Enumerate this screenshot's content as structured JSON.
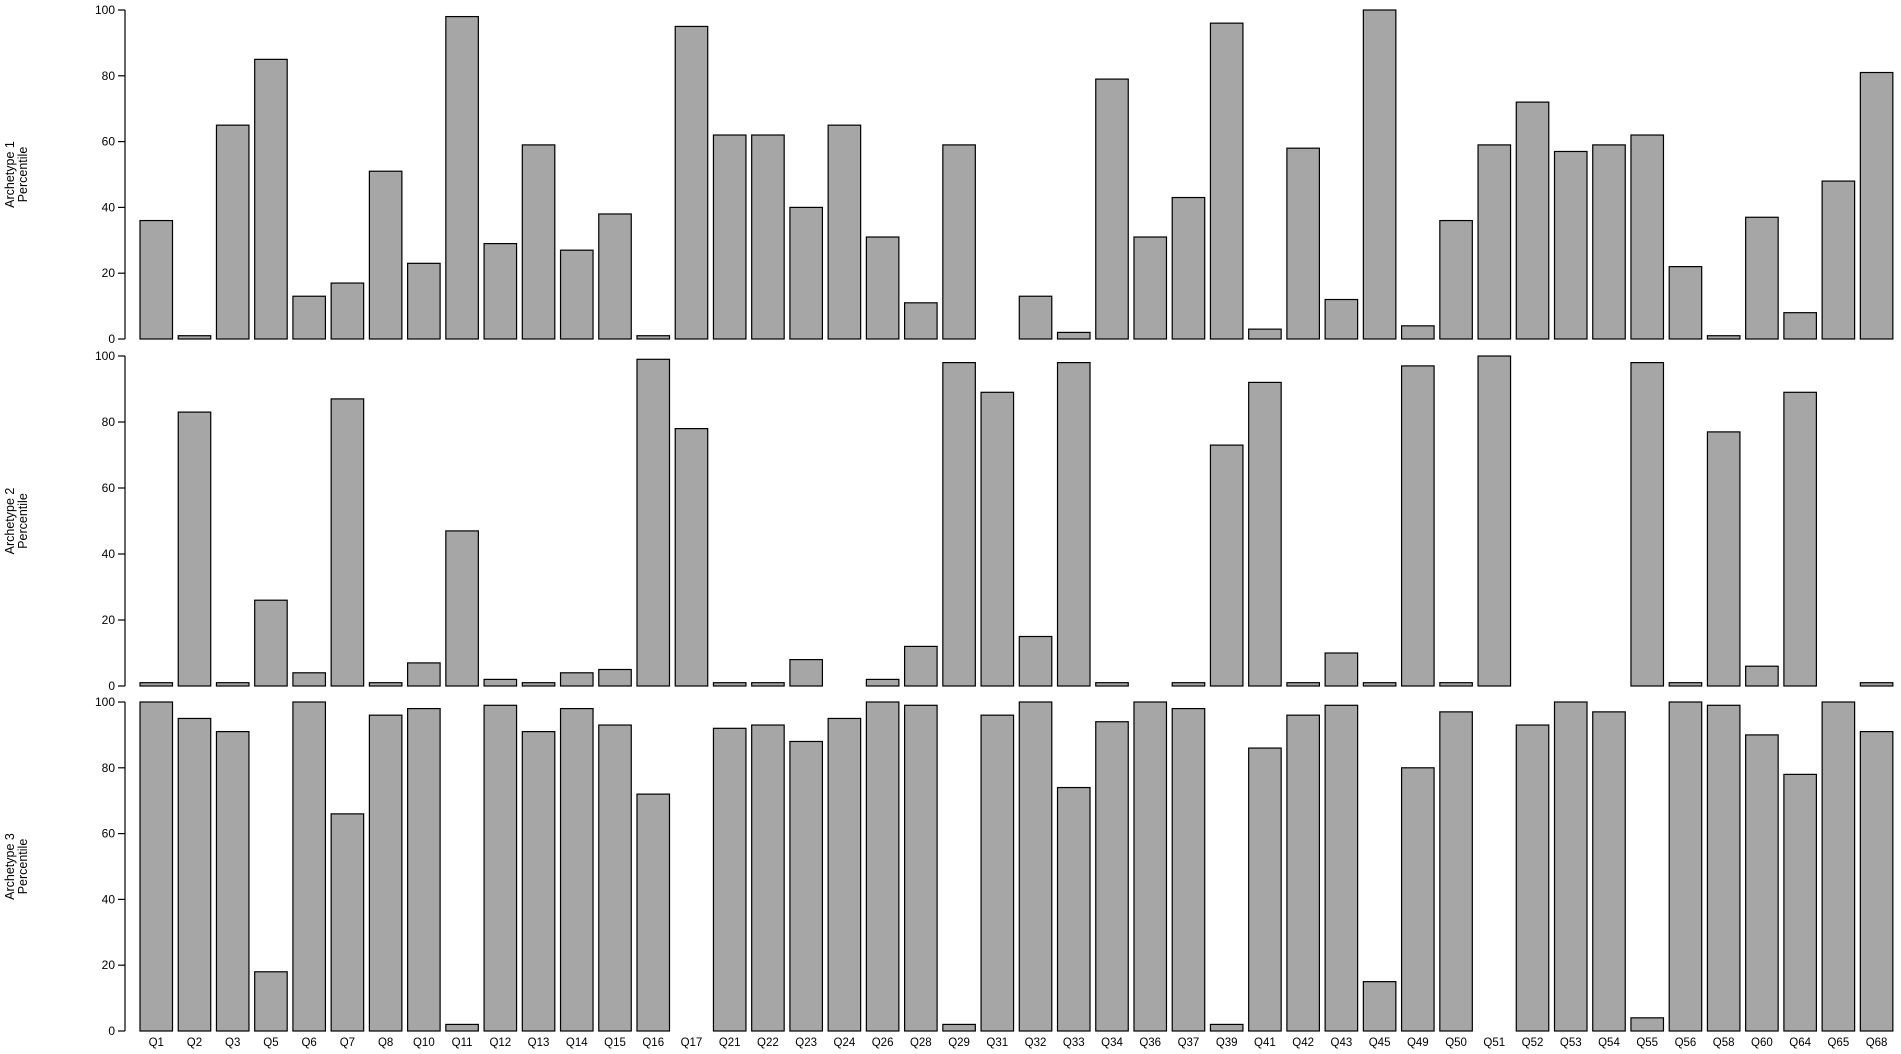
{
  "chart_data": {
    "type": "bar",
    "layout": "stacked-panels",
    "categories": [
      "Q1",
      "Q2",
      "Q3",
      "Q5",
      "Q6",
      "Q7",
      "Q8",
      "Q10",
      "Q11",
      "Q12",
      "Q13",
      "Q14",
      "Q15",
      "Q16",
      "Q17",
      "Q21",
      "Q22",
      "Q23",
      "Q24",
      "Q26",
      "Q28",
      "Q29",
      "Q31",
      "Q32",
      "Q33",
      "Q34",
      "Q36",
      "Q37",
      "Q39",
      "Q41",
      "Q42",
      "Q43",
      "Q45",
      "Q49",
      "Q50",
      "Q51",
      "Q52",
      "Q53",
      "Q54",
      "Q55",
      "Q56",
      "Q58",
      "Q60",
      "Q64",
      "Q65",
      "Q68"
    ],
    "ylim": [
      0,
      100
    ],
    "yticks": [
      0,
      20,
      40,
      60,
      80,
      100
    ],
    "grid": false,
    "bar_color": "#a6a6a6",
    "panels": [
      {
        "ylabel_line1": "Archetype 1",
        "ylabel_line2": "Percentile",
        "values": [
          36,
          1,
          65,
          85,
          13,
          17,
          51,
          23,
          98,
          29,
          59,
          27,
          38,
          1,
          95,
          62,
          62,
          40,
          65,
          31,
          11,
          59,
          0,
          13,
          2,
          79,
          31,
          43,
          96,
          3,
          58,
          12,
          100,
          4,
          36,
          59,
          72,
          57,
          59,
          62,
          22,
          1,
          37,
          8,
          48,
          81
        ]
      },
      {
        "ylabel_line1": "Archetype 2",
        "ylabel_line2": "Percentile",
        "values": [
          1,
          83,
          1,
          26,
          4,
          87,
          1,
          7,
          47,
          2,
          1,
          4,
          5,
          99,
          78,
          1,
          1,
          8,
          0,
          2,
          12,
          98,
          89,
          15,
          98,
          1,
          0,
          1,
          73,
          92,
          1,
          10,
          1,
          97,
          1,
          100,
          0,
          0,
          0,
          98,
          1,
          77,
          6,
          89,
          0,
          1
        ]
      },
      {
        "ylabel_line1": "Archetype 3",
        "ylabel_line2": "Percentile",
        "values": [
          100,
          95,
          91,
          18,
          100,
          66,
          96,
          98,
          2,
          99,
          91,
          98,
          93,
          72,
          0,
          92,
          93,
          88,
          95,
          100,
          99,
          2,
          96,
          100,
          74,
          94,
          100,
          98,
          2,
          86,
          96,
          99,
          15,
          80,
          97,
          0,
          93,
          100,
          97,
          4,
          100,
          99,
          90,
          78,
          100,
          91
        ]
      }
    ]
  }
}
